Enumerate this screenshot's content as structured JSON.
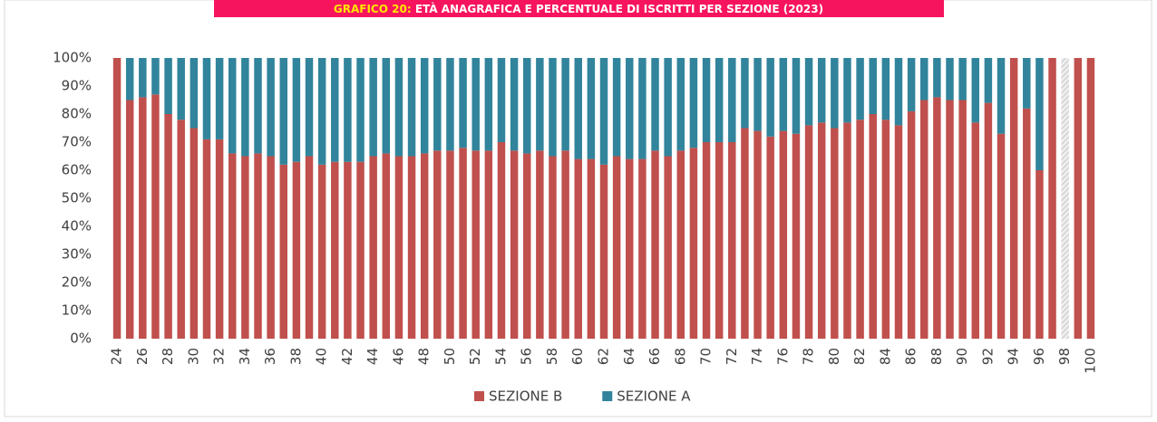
{
  "chart_data": {
    "type": "stacked_bar",
    "title": {
      "prefix": "GRAFICO 20:",
      "text": "ETÀ ANAGRAFICA E PERCENTUALE DI ISCRITTI PER SEZIONE (2023)"
    },
    "categories": [
      "24",
      null,
      "26",
      null,
      "28",
      null,
      "30",
      null,
      "32",
      null,
      "34",
      null,
      "36",
      null,
      "38",
      null,
      "40",
      null,
      "42",
      null,
      "44",
      null,
      "46",
      null,
      "48",
      null,
      "50",
      null,
      "52",
      null,
      "54",
      null,
      "56",
      null,
      "58",
      null,
      "60",
      null,
      "62",
      null,
      "64",
      null,
      "66",
      null,
      "68",
      null,
      "70",
      null,
      "72",
      null,
      "74",
      null,
      "76",
      null,
      "78",
      null,
      "80",
      null,
      "82",
      null,
      "84",
      null,
      "86",
      null,
      "88",
      null,
      "90",
      null,
      "92",
      null,
      "94",
      null,
      "96",
      null,
      "98",
      null,
      "100"
    ],
    "series": [
      {
        "name": "SEZIONE B",
        "color": "#c0504d",
        "values": [
          100,
          85,
          86,
          87,
          80,
          78,
          75,
          71,
          71,
          66,
          65,
          66,
          65,
          62,
          63,
          65,
          62,
          63,
          63,
          63,
          65,
          66,
          65,
          65,
          66,
          67,
          67,
          68,
          67,
          67,
          70,
          67,
          66,
          67,
          65,
          67,
          64,
          64,
          62,
          65,
          64,
          64,
          67,
          65,
          67,
          68,
          70,
          70,
          70,
          75,
          74,
          72,
          74,
          73,
          76,
          77,
          75,
          77,
          78,
          80,
          78,
          76,
          81,
          85,
          86,
          85,
          85,
          77,
          84,
          73,
          100,
          82,
          60,
          100,
          null,
          100,
          100
        ]
      },
      {
        "name": "SEZIONE A",
        "color": "#31849b",
        "values": [
          0,
          15,
          14,
          13,
          20,
          22,
          25,
          29,
          29,
          34,
          35,
          34,
          35,
          38,
          37,
          35,
          38,
          37,
          37,
          37,
          35,
          34,
          35,
          35,
          34,
          33,
          33,
          32,
          33,
          33,
          30,
          33,
          34,
          33,
          35,
          33,
          36,
          36,
          38,
          35,
          36,
          36,
          33,
          35,
          33,
          32,
          30,
          30,
          30,
          25,
          26,
          28,
          26,
          27,
          24,
          23,
          25,
          23,
          22,
          20,
          22,
          24,
          19,
          15,
          14,
          15,
          15,
          23,
          16,
          27,
          0,
          18,
          40,
          0,
          null,
          0,
          0
        ]
      }
    ],
    "ylim": [
      0,
      100
    ],
    "yticks": [
      {
        "value": 0,
        "label": "0%"
      },
      {
        "value": 10,
        "label": "10%"
      },
      {
        "value": 20,
        "label": "20%"
      },
      {
        "value": 30,
        "label": "30%"
      },
      {
        "value": 40,
        "label": "40%"
      },
      {
        "value": 50,
        "label": "50%"
      },
      {
        "value": 60,
        "label": "60%"
      },
      {
        "value": 70,
        "label": "70%"
      },
      {
        "value": 80,
        "label": "80%"
      },
      {
        "value": 90,
        "label": "90%"
      },
      {
        "value": 100,
        "label": "100%"
      }
    ],
    "legend": "bottom"
  }
}
